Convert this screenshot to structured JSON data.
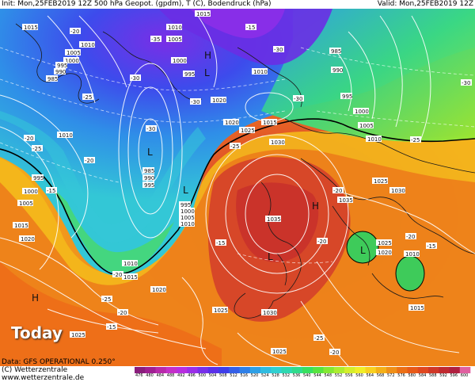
{
  "header": {
    "left": "Init: Mon,25FEB2019 12Z 500 hPa Geopot. (gpdm), T (C), Bodendruck (hPa)",
    "right": "Valid: Mon,25FEB2019 12Z"
  },
  "footer": {
    "data_line": "Data: GFS OPERATIONAL 0.250°",
    "copyright": "(C) Wetterzentrale",
    "url": "www.wetterzentrale.de"
  },
  "overlay_label": "Today",
  "color_scale": {
    "ticks": [
      "476",
      "480",
      "484",
      "488",
      "492",
      "496",
      "500",
      "504",
      "508",
      "512",
      "516",
      "520",
      "524",
      "528",
      "532",
      "536",
      "540",
      "544",
      "548",
      "552",
      "556",
      "560",
      "564",
      "568",
      "572",
      "576",
      "580",
      "584",
      "588",
      "592",
      "596",
      "600"
    ],
    "colors": [
      "#8a1e7c",
      "#a02092",
      "#b82aaa",
      "#c430c8",
      "#b82ee0",
      "#9a2fe8",
      "#7830ea",
      "#5a30ea",
      "#3f3eea",
      "#3560e8",
      "#2f80e8",
      "#2ea0e6",
      "#30bce0",
      "#30d0d0",
      "#2ed8b0",
      "#30dc8c",
      "#38e060",
      "#58e440",
      "#84e834",
      "#acec30",
      "#d4ee2c",
      "#f0ee28",
      "#f8d020",
      "#f4b018",
      "#f09018",
      "#ec7016",
      "#e85a18",
      "#e04820",
      "#d03828",
      "#c02a30",
      "#b02040",
      "#e060a0"
    ]
  },
  "map_labels": {
    "isobars": [
      "1015",
      "1010",
      "1005",
      "1000",
      "995",
      "990",
      "985",
      "985",
      "990",
      "995",
      "1000",
      "1005",
      "1010",
      "1015",
      "1020",
      "1025",
      "1030",
      "1035",
      "1035",
      "1030",
      "1025",
      "1020",
      "1015",
      "1010",
      "1005",
      "1000",
      "995",
      "990",
      "985",
      "1020",
      "1015",
      "1010",
      "1025",
      "1030",
      "1020",
      "1025",
      "1010",
      "1015",
      "1025",
      "1020",
      "1005",
      "1000",
      "995"
    ],
    "temps": [
      "-10",
      "-25",
      "-30",
      "-20",
      "-35",
      "-15",
      "-30",
      "-25",
      "-20",
      "-30",
      "-35",
      "-30",
      "-25",
      "-20",
      "-30",
      "-15",
      "-20",
      "-25",
      "-15",
      "-10",
      "-20",
      "-15",
      "-10",
      "-20",
      "-25",
      "-20",
      "-15",
      "-25",
      "-30",
      "-20",
      "-15",
      "-10"
    ],
    "pressure_centers": [
      "H",
      "L",
      "L",
      "L",
      "H",
      "L",
      "H",
      "L",
      "L"
    ]
  }
}
